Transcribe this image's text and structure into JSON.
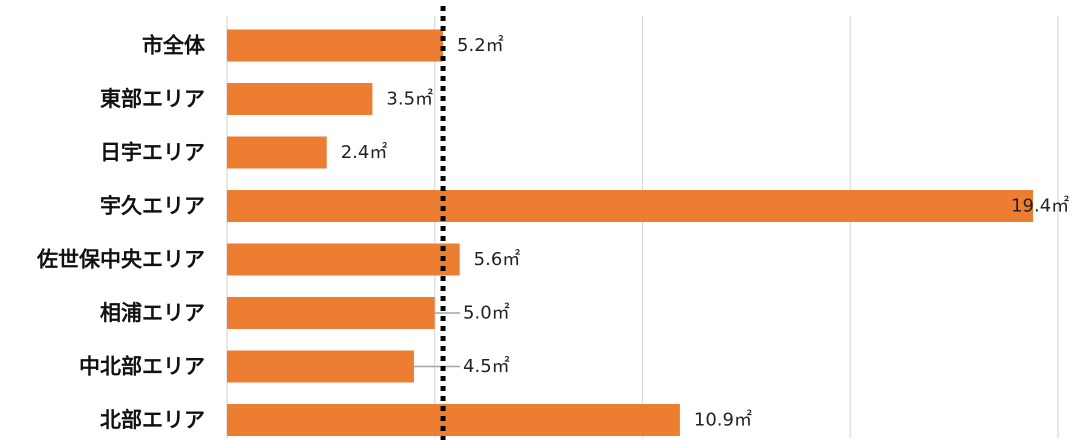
{
  "chart_data": {
    "type": "bar",
    "orientation": "horizontal",
    "categories": [
      "市全体",
      "東部エリア",
      "日宇エリア",
      "宇久エリア",
      "佐世保中央エリア",
      "相浦エリア",
      "中北部エリア",
      "北部エリア"
    ],
    "values": [
      5.2,
      3.5,
      2.4,
      19.4,
      5.6,
      5.0,
      4.5,
      10.9
    ],
    "value_labels": [
      "5.2㎡",
      "3.5㎡",
      "2.4㎡",
      "19.4㎡",
      "5.6㎡",
      "5.0㎡",
      "4.5㎡",
      "10.9㎡"
    ],
    "reference_line": {
      "value": 5.2,
      "style": "dotted"
    },
    "xlim": [
      0,
      20
    ],
    "grid": true,
    "bar_color": "#ED7D31",
    "grid_color": "#D9D9D9",
    "reference_line_color": "#000000",
    "leader_line_color": "#A6A6A6"
  }
}
